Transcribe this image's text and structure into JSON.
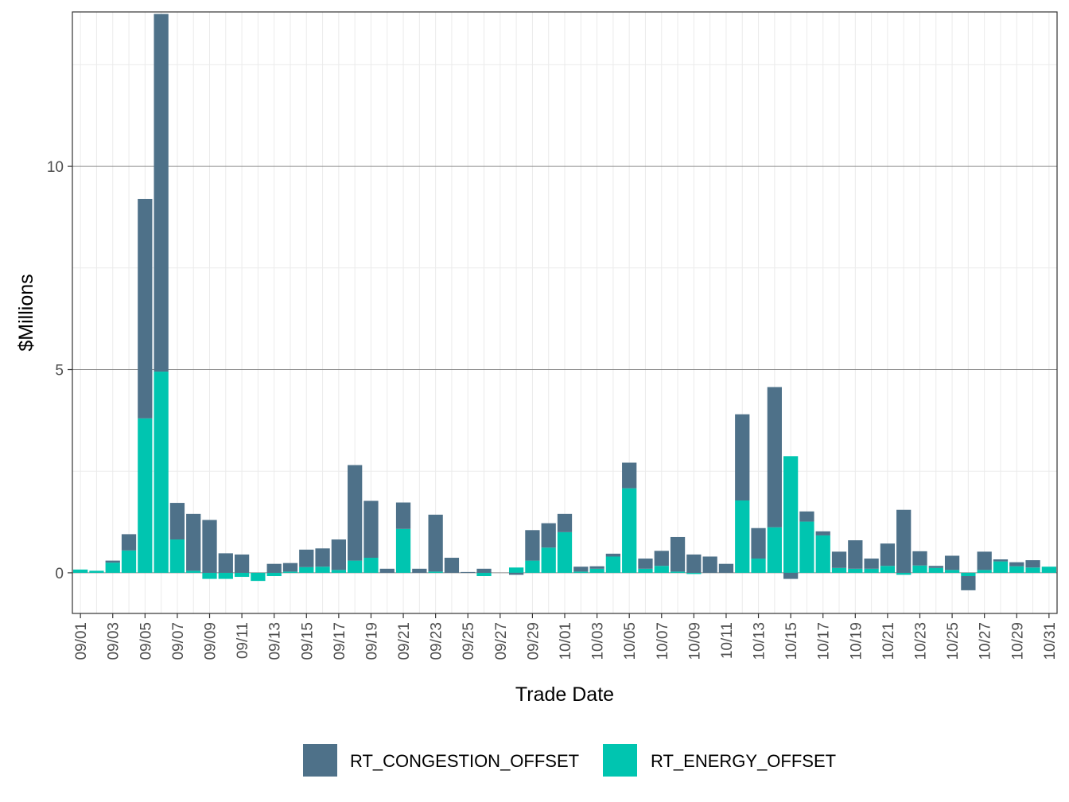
{
  "chart_data": {
    "type": "bar",
    "stacked": true,
    "title": "",
    "xlabel": "Trade Date",
    "ylabel": "$Millions",
    "ylim": [
      -1.0,
      13.8
    ],
    "yticks": [
      0,
      5,
      10
    ],
    "ytick_labels": [
      "0",
      "5",
      "10"
    ],
    "grid": true,
    "legend_position": "bottom",
    "categories": [
      "09/01",
      "09/02",
      "09/03",
      "09/04",
      "09/05",
      "09/06",
      "09/07",
      "09/08",
      "09/09",
      "09/10",
      "09/11",
      "09/12",
      "09/13",
      "09/14",
      "09/15",
      "09/16",
      "09/17",
      "09/18",
      "09/19",
      "09/20",
      "09/21",
      "09/22",
      "09/23",
      "09/24",
      "09/25",
      "09/26",
      "09/27",
      "09/28",
      "09/29",
      "09/30",
      "10/01",
      "10/02",
      "10/03",
      "10/04",
      "10/05",
      "10/06",
      "10/07",
      "10/08",
      "10/09",
      "10/10",
      "10/11",
      "10/12",
      "10/13",
      "10/14",
      "10/15",
      "10/16",
      "10/17",
      "10/18",
      "10/19",
      "10/20",
      "10/21",
      "10/22",
      "10/23",
      "10/24",
      "10/25",
      "10/26",
      "10/27",
      "10/28",
      "10/29",
      "10/30",
      "10/31"
    ],
    "xtick_labels": [
      "09/01",
      "09/03",
      "09/05",
      "09/07",
      "09/09",
      "09/11",
      "09/13",
      "09/15",
      "09/17",
      "09/19",
      "09/21",
      "09/23",
      "09/25",
      "09/27",
      "09/29",
      "10/01",
      "10/03",
      "10/05",
      "10/07",
      "10/09",
      "10/11",
      "10/13",
      "10/15",
      "10/17",
      "10/19",
      "10/21",
      "10/23",
      "10/25",
      "10/27",
      "10/29",
      "10/31"
    ],
    "series": [
      {
        "name": "RT_CONGESTION_OFFSET",
        "color": "#4e7189",
        "values": [
          0.0,
          0.0,
          0.05,
          0.4,
          5.4,
          8.8,
          0.9,
          1.4,
          1.3,
          0.48,
          0.45,
          0.0,
          0.22,
          0.21,
          0.43,
          0.45,
          0.75,
          2.35,
          1.4,
          0.1,
          0.65,
          0.1,
          1.4,
          0.37,
          0.02,
          0.1,
          0.0,
          -0.05,
          0.75,
          0.6,
          0.45,
          0.12,
          0.06,
          0.07,
          0.63,
          0.25,
          0.37,
          0.85,
          0.45,
          0.4,
          0.22,
          2.12,
          0.75,
          3.45,
          -0.15,
          0.25,
          0.1,
          0.4,
          0.7,
          0.25,
          0.55,
          1.55,
          0.35,
          0.05,
          0.35,
          -0.35,
          0.45,
          0.05,
          0.1,
          0.18,
          0.0
        ]
      },
      {
        "name": "RT_ENERGY_OFFSET",
        "color": "#00c5b0",
        "values": [
          0.08,
          0.05,
          0.25,
          0.55,
          3.8,
          4.95,
          0.82,
          0.05,
          -0.15,
          -0.15,
          -0.1,
          -0.2,
          -0.08,
          0.03,
          0.14,
          0.15,
          0.07,
          0.3,
          0.37,
          0.0,
          1.08,
          0.0,
          0.03,
          0.0,
          0.0,
          -0.08,
          0.0,
          0.13,
          0.3,
          0.62,
          1.0,
          0.03,
          0.1,
          0.4,
          2.08,
          0.1,
          0.17,
          0.03,
          -0.03,
          0.0,
          0.0,
          1.78,
          0.35,
          1.12,
          2.87,
          1.26,
          0.92,
          0.12,
          0.1,
          0.1,
          0.17,
          -0.05,
          0.18,
          0.12,
          0.07,
          -0.08,
          0.07,
          0.28,
          0.16,
          0.13,
          0.15
        ]
      }
    ]
  }
}
